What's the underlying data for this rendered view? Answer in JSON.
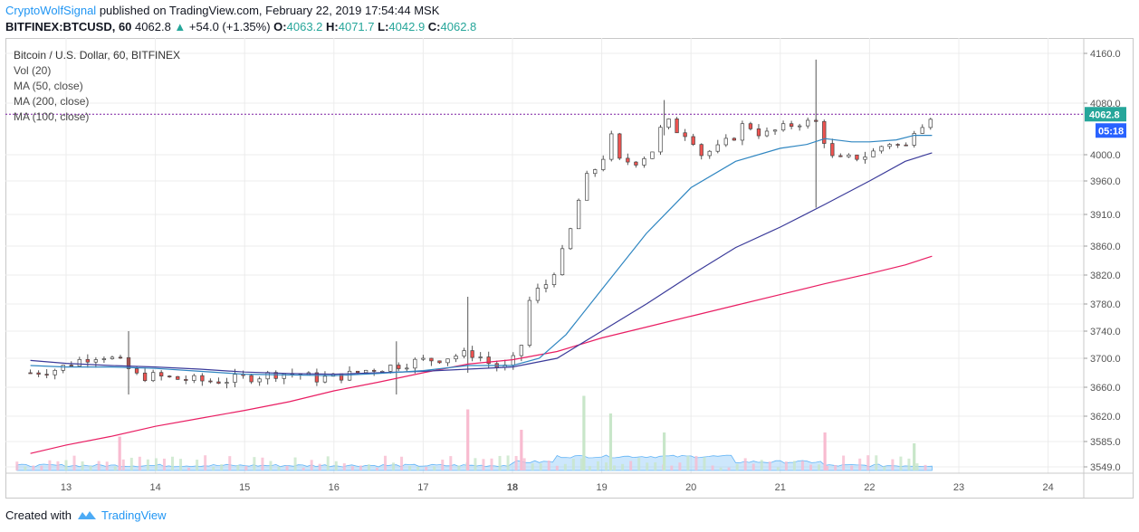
{
  "header": {
    "author": "CryptoWolfSignal",
    "published": "published on TradingView.com, February 22, 2019 17:54:44 MSK",
    "symbol": "BITFINEX:BTCUSD, 60",
    "last": "4062.8",
    "change": "+54.0 (+1.35%)",
    "o_label": "O:",
    "o_val": "4063.2",
    "h_label": "H:",
    "h_val": "4071.7",
    "l_label": "L:",
    "l_val": "4042.9",
    "c_label": "C:",
    "c_val": "4062.8"
  },
  "legend": {
    "title": "Bitcoin / U.S. Dollar, 60, BITFINEX",
    "vol": "Vol (20)",
    "ma50": "MA (50, close)",
    "ma200": "MA (200, close)",
    "ma100": "MA (100, close)"
  },
  "price_tag": "4062.8",
  "time_tag": "05:18",
  "footer": {
    "created": "Created with",
    "brand": "TradingView"
  },
  "colors": {
    "up": "#26a69a",
    "down": "#ef5350",
    "ma50": "#2f86c1",
    "ma100": "#3b3b9a",
    "ma200": "#e91e63",
    "price_line": "#7b1fa2",
    "volume_area": "#90caf9"
  },
  "chart_data": {
    "type": "candlestick",
    "symbol": "BITFINEX:BTCUSD",
    "interval": "60",
    "y_ticks": [
      4160.0,
      4080.0,
      4000.0,
      3960.0,
      3910.0,
      3860.0,
      3820.0,
      3780.0,
      3740.0,
      3700.0,
      3660.0,
      3620.0,
      3585.0,
      3549.0
    ],
    "x_ticks": [
      "13",
      "14",
      "15",
      "16",
      "17",
      "18",
      "19",
      "20",
      "21",
      "22",
      "23",
      "24"
    ],
    "current_price": 4062.8,
    "ohlc_path": [
      [
        12.6,
        3680
      ],
      [
        12.9,
        3685
      ],
      [
        13.0,
        3690
      ],
      [
        13.2,
        3700
      ],
      [
        13.4,
        3705
      ],
      [
        13.5,
        3700
      ],
      [
        13.6,
        3695
      ],
      [
        13.8,
        3675
      ],
      [
        14.0,
        3675
      ],
      [
        14.2,
        3672
      ],
      [
        14.4,
        3670
      ],
      [
        14.6,
        3668
      ],
      [
        14.8,
        3670
      ],
      [
        15.0,
        3673
      ],
      [
        15.2,
        3676
      ],
      [
        15.4,
        3680
      ],
      [
        15.6,
        3678
      ],
      [
        15.8,
        3672
      ],
      [
        16.0,
        3674
      ],
      [
        16.2,
        3678
      ],
      [
        16.4,
        3685
      ],
      [
        16.6,
        3688
      ],
      [
        16.8,
        3693
      ],
      [
        17.0,
        3697
      ],
      [
        17.2,
        3700
      ],
      [
        17.4,
        3705
      ],
      [
        17.6,
        3707
      ],
      [
        17.7,
        3695
      ],
      [
        17.9,
        3685
      ],
      [
        18.0,
        3695
      ],
      [
        18.1,
        3720
      ],
      [
        18.2,
        3790
      ],
      [
        18.4,
        3810
      ],
      [
        18.6,
        3860
      ],
      [
        18.8,
        3960
      ],
      [
        19.0,
        3990
      ],
      [
        19.1,
        4030
      ],
      [
        19.2,
        3990
      ],
      [
        19.4,
        3990
      ],
      [
        19.6,
        4010
      ],
      [
        19.7,
        4060
      ],
      [
        19.8,
        4040
      ],
      [
        20.0,
        4030
      ],
      [
        20.1,
        4000
      ],
      [
        20.3,
        4010
      ],
      [
        20.5,
        4030
      ],
      [
        20.6,
        4050
      ],
      [
        20.8,
        4030
      ],
      [
        21.0,
        4040
      ],
      [
        21.2,
        4050
      ],
      [
        21.4,
        4050
      ],
      [
        21.5,
        4020
      ],
      [
        21.6,
        3990
      ],
      [
        21.8,
        3995
      ],
      [
        22.0,
        4000
      ],
      [
        22.2,
        4020
      ],
      [
        22.4,
        4010
      ],
      [
        22.5,
        4040
      ],
      [
        22.6,
        4050
      ],
      [
        22.7,
        4062.8
      ]
    ],
    "ma50": [
      [
        12.6,
        3690
      ],
      [
        13.0,
        3688
      ],
      [
        13.5,
        3688
      ],
      [
        14.0,
        3686
      ],
      [
        14.5,
        3682
      ],
      [
        15.0,
        3678
      ],
      [
        15.5,
        3677
      ],
      [
        16.0,
        3676
      ],
      [
        16.5,
        3679
      ],
      [
        17.0,
        3683
      ],
      [
        17.5,
        3690
      ],
      [
        18.0,
        3690
      ],
      [
        18.3,
        3700
      ],
      [
        18.6,
        3735
      ],
      [
        19.0,
        3800
      ],
      [
        19.5,
        3880
      ],
      [
        20.0,
        3950
      ],
      [
        20.5,
        3990
      ],
      [
        21.0,
        4010
      ],
      [
        21.3,
        4016
      ],
      [
        21.5,
        4025
      ],
      [
        21.8,
        4020
      ],
      [
        22.0,
        4020
      ],
      [
        22.3,
        4023
      ],
      [
        22.5,
        4030
      ],
      [
        22.7,
        4030
      ]
    ],
    "ma100": [
      [
        12.6,
        3697
      ],
      [
        13.0,
        3693
      ],
      [
        13.5,
        3690
      ],
      [
        14.0,
        3688
      ],
      [
        14.5,
        3685
      ],
      [
        15.0,
        3681
      ],
      [
        15.5,
        3679
      ],
      [
        16.0,
        3678
      ],
      [
        16.5,
        3680
      ],
      [
        17.0,
        3682
      ],
      [
        17.5,
        3685
      ],
      [
        18.0,
        3688
      ],
      [
        18.5,
        3700
      ],
      [
        19.0,
        3740
      ],
      [
        19.5,
        3780
      ],
      [
        20.0,
        3820
      ],
      [
        20.5,
        3858
      ],
      [
        21.0,
        3890
      ],
      [
        21.5,
        3925
      ],
      [
        22.0,
        3960
      ],
      [
        22.4,
        3990
      ],
      [
        22.7,
        4003
      ]
    ],
    "ma200": [
      [
        12.6,
        3568
      ],
      [
        13.0,
        3580
      ],
      [
        13.5,
        3592
      ],
      [
        14.0,
        3606
      ],
      [
        14.5,
        3617
      ],
      [
        15.0,
        3628
      ],
      [
        15.5,
        3640
      ],
      [
        16.0,
        3655
      ],
      [
        16.5,
        3667
      ],
      [
        17.0,
        3680
      ],
      [
        17.5,
        3692
      ],
      [
        18.0,
        3698
      ],
      [
        18.5,
        3710
      ],
      [
        19.0,
        3730
      ],
      [
        19.5,
        3746
      ],
      [
        20.0,
        3762
      ],
      [
        20.5,
        3778
      ],
      [
        21.0,
        3793
      ],
      [
        21.5,
        3808
      ],
      [
        22.0,
        3822
      ],
      [
        22.4,
        3834
      ],
      [
        22.7,
        3846
      ]
    ],
    "volume_spikes": [
      [
        13.6,
        0.25,
        "down"
      ],
      [
        17.5,
        0.45,
        "down"
      ],
      [
        18.1,
        0.3,
        "down"
      ],
      [
        18.8,
        0.55,
        "up"
      ],
      [
        19.1,
        0.42,
        "up"
      ],
      [
        19.7,
        0.28,
        "up"
      ],
      [
        21.5,
        0.28,
        "down"
      ],
      [
        22.5,
        0.2,
        "up"
      ]
    ]
  }
}
